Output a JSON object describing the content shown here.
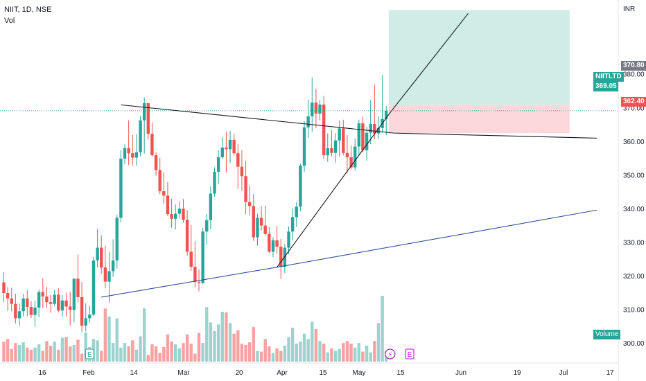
{
  "header": {
    "symbol_line": "NIIT, 1D, NSE",
    "indicator": "Vol"
  },
  "currency": "INR",
  "price_tags": {
    "target_price": "370.80",
    "symbol": "NIITLTD",
    "last_price": "369.05",
    "stop_price": "362.40"
  },
  "volume_badge": "Volume",
  "colors": {
    "up": "#26a69a",
    "down": "#ef5350",
    "vol_up": "#9cd3ce",
    "vol_down": "#f5a3a2",
    "profit_zone": "#cfece6",
    "loss_zone": "#fcd8dc",
    "trendline": "#131722",
    "support": "#2f4f99",
    "earnings": "#26a69a",
    "dividend": "#9c27b0",
    "split": "#d500f9"
  },
  "chart_data": {
    "type": "candlestick",
    "title": "NIIT, 1D, NSE",
    "ylim": [
      294,
      402
    ],
    "y_ticks": [
      300,
      310,
      320,
      330,
      340,
      350,
      360,
      370,
      380
    ],
    "x_tick_labels": [
      "16",
      "Feb",
      "14",
      "Mar",
      "20",
      "Apr",
      "15",
      "May",
      "15",
      "Jun",
      "19",
      "Jul",
      "17"
    ],
    "candles": [
      [
        318,
        321,
        312,
        314.8
      ],
      [
        314.8,
        316.6,
        309.5,
        313.2
      ],
      [
        313.2,
        316.4,
        309.4,
        311.6
      ],
      [
        311.6,
        314.6,
        305.8,
        307.3
      ],
      [
        307.3,
        311.7,
        305,
        309.4
      ],
      [
        309.4,
        314.6,
        307.8,
        313.2
      ],
      [
        313.2,
        315.7,
        307.9,
        310.7
      ],
      [
        310.7,
        312.4,
        307.4,
        308.3
      ],
      [
        308.3,
        312.6,
        304.8,
        310.5
      ],
      [
        310.5,
        315.9,
        307.6,
        315.1
      ],
      [
        315.1,
        319.2,
        310.3,
        313.8
      ],
      [
        313.8,
        316.6,
        310.4,
        312.1
      ],
      [
        312.1,
        314.2,
        308.9,
        311.6
      ],
      [
        311.6,
        315.8,
        310.9,
        314.3
      ],
      [
        314.3,
        316.3,
        309.1,
        309.6
      ],
      [
        309.6,
        314.2,
        307.8,
        312.6
      ],
      [
        312.6,
        314.9,
        307.7,
        310.8
      ],
      [
        310.8,
        315.2,
        305.1,
        309.8
      ],
      [
        309.8,
        319,
        306.1,
        319.1
      ],
      [
        319.1,
        326.3,
        312,
        313.6
      ],
      [
        313.6,
        318.1,
        303.2,
        305.1
      ],
      [
        305.1,
        311.7,
        303.4,
        307.3
      ],
      [
        307.3,
        311,
        306,
        308.4
      ],
      [
        308.4,
        325.5,
        307.9,
        324.5
      ],
      [
        324.5,
        333.9,
        322.4,
        328.3
      ],
      [
        328.3,
        332,
        320.5,
        322.4
      ],
      [
        322.4,
        328.9,
        316.2,
        318.2
      ],
      [
        318.2,
        327.1,
        312,
        321.3
      ],
      [
        321.3,
        330.8,
        319.6,
        324.5
      ],
      [
        324.5,
        338.1,
        322.1,
        337.2
      ],
      [
        337.2,
        357.3,
        335.8,
        354.8
      ],
      [
        354.8,
        359.1,
        353.1,
        357.9
      ],
      [
        357.9,
        366.2,
        352.9,
        356.4
      ],
      [
        356.4,
        361.8,
        352.7,
        355.1
      ],
      [
        355.1,
        362.1,
        352.7,
        356.7
      ],
      [
        356.7,
        367.5,
        355.5,
        366.2
      ],
      [
        366.2,
        373,
        356.3,
        371.3
      ],
      [
        371.3,
        371.1,
        360.5,
        362.2
      ],
      [
        362.2,
        365.6,
        355.4,
        355.8
      ],
      [
        355.8,
        356.6,
        349.7,
        351.4
      ],
      [
        351.4,
        355.1,
        344.2,
        345.1
      ],
      [
        345.1,
        350.7,
        341.4,
        343.8
      ],
      [
        343.8,
        347.8,
        337.7,
        338.3
      ],
      [
        338.3,
        342.9,
        334.2,
        336.9
      ],
      [
        336.9,
        341.2,
        333.7,
        338.4
      ],
      [
        338.4,
        342.1,
        337,
        339.9
      ],
      [
        339.9,
        342.8,
        335.7,
        336.6
      ],
      [
        336.6,
        339.5,
        325.9,
        327.1
      ],
      [
        327.1,
        335.1,
        321.4,
        322.6
      ],
      [
        322.6,
        330.2,
        316.5,
        318.1
      ],
      [
        318.1,
        321.8,
        315.3,
        317.8
      ],
      [
        317.8,
        334.2,
        317.4,
        333.1
      ],
      [
        333.1,
        338.3,
        329.2,
        336.5
      ],
      [
        336.5,
        346.5,
        333.8,
        344.4
      ],
      [
        344.4,
        352.2,
        343.5,
        350.9
      ],
      [
        350.9,
        357.4,
        347.2,
        355.2
      ],
      [
        355.2,
        361.2,
        354.6,
        358.1
      ],
      [
        358.1,
        362.8,
        350.6,
        357.6
      ],
      [
        357.6,
        363.1,
        353.5,
        360.4
      ],
      [
        360.4,
        362.2,
        355.8,
        356.4
      ],
      [
        356.4,
        359.1,
        345.8,
        352.4
      ],
      [
        352.4,
        357.3,
        345.2,
        349.6
      ],
      [
        349.6,
        354.2,
        338.3,
        341.9
      ],
      [
        341.9,
        346.7,
        337.9,
        340.7
      ],
      [
        340.7,
        344.3,
        330.3,
        331.4
      ],
      [
        331.4,
        338.4,
        328.9,
        337.2
      ],
      [
        337.2,
        340.6,
        333.4,
        334.9
      ],
      [
        334.9,
        340.8,
        331.9,
        332.4
      ],
      [
        332.4,
        334.5,
        326.6,
        327.1
      ],
      [
        327.1,
        331.4,
        325.5,
        330.5
      ],
      [
        330.5,
        334.8,
        326.5,
        328.6
      ],
      [
        328.6,
        330.9,
        319,
        322.6
      ],
      [
        322.6,
        329.4,
        320.8,
        328.3
      ],
      [
        328.3,
        334.6,
        326.4,
        333.1
      ],
      [
        333.1,
        339.9,
        330.5,
        337.4
      ],
      [
        337.4,
        341.9,
        334.5,
        340.5
      ],
      [
        340.5,
        353.3,
        339.1,
        352.7
      ],
      [
        352.7,
        365.9,
        350.8,
        364.1
      ],
      [
        364.1,
        372.4,
        360.9,
        367.4
      ],
      [
        367.4,
        379,
        362.8,
        371.5
      ],
      [
        371.5,
        375.6,
        363.9,
        368.2
      ],
      [
        368.2,
        372.3,
        366.2,
        370.9
      ],
      [
        370.9,
        373.5,
        354.6,
        355.8
      ],
      [
        355.8,
        362.3,
        353.9,
        357.9
      ],
      [
        357.9,
        363.4,
        355.5,
        356.5
      ],
      [
        356.5,
        362.4,
        353.6,
        360.2
      ],
      [
        360.2,
        366.2,
        355.5,
        363.8
      ],
      [
        363.8,
        366.4,
        355.8,
        356.5
      ],
      [
        356.5,
        361.8,
        350.5,
        355.2
      ],
      [
        355.2,
        358.8,
        351.7,
        352.2
      ],
      [
        352.2,
        360.8,
        351.2,
        358.4
      ],
      [
        358.4,
        366.4,
        355.7,
        365.3
      ],
      [
        365.3,
        367.3,
        356.7,
        357.3
      ],
      [
        357.3,
        364.2,
        354.2,
        362.5
      ],
      [
        362.5,
        372.3,
        359.1,
        365.1
      ],
      [
        365.1,
        376.8,
        360.6,
        362.3
      ],
      [
        362.3,
        367.4,
        360.7,
        363.9
      ],
      [
        363.9,
        379.7,
        362.5,
        366.6
      ],
      [
        366.6,
        370.4,
        361.8,
        369.05
      ]
    ],
    "volume": [
      30,
      34,
      19,
      28,
      25,
      29,
      21,
      18,
      21,
      26,
      16,
      31,
      24,
      30,
      18,
      36,
      37,
      23,
      25,
      33,
      12,
      44,
      22,
      34,
      32,
      16,
      80,
      68,
      28,
      65,
      21,
      28,
      23,
      32,
      18,
      38,
      80,
      10,
      26,
      23,
      13,
      22,
      41,
      30,
      26,
      20,
      28,
      41,
      27,
      12,
      43,
      28,
      82,
      59,
      46,
      56,
      75,
      74,
      58,
      42,
      47,
      27,
      25,
      29,
      52,
      16,
      15,
      34,
      23,
      13,
      20,
      16,
      24,
      37,
      51,
      27,
      30,
      42,
      34,
      60,
      49,
      31,
      27,
      14,
      20,
      16,
      19,
      28,
      31,
      27,
      21,
      28,
      15,
      24,
      14,
      31,
      58,
      99,
      16
    ],
    "trendlines": [
      {
        "points": [
          [
            30,
            370.8
          ],
          [
            100,
            362.4
          ],
          [
            152,
            360.9
          ]
        ]
      },
      {
        "points": [
          [
            25,
            313.6
          ],
          [
            70,
            322.5
          ],
          [
            152,
            339.5
          ]
        ]
      },
      {
        "points": [
          [
            70,
            322.5
          ],
          [
            99,
            368.5
          ],
          [
            119,
            398
          ]
        ]
      }
    ],
    "position": {
      "type": "long",
      "entry": 369.05,
      "target": 370.8,
      "stop": 362.4,
      "profit_top": 399,
      "start_bar": 99,
      "end_bar": 145
    },
    "events": [
      {
        "type": "earnings",
        "label": "E",
        "bar": 22
      },
      {
        "type": "split",
        "label": "⚡",
        "bar": 99
      },
      {
        "type": "earnings",
        "label": "E",
        "bar": 104
      }
    ]
  }
}
